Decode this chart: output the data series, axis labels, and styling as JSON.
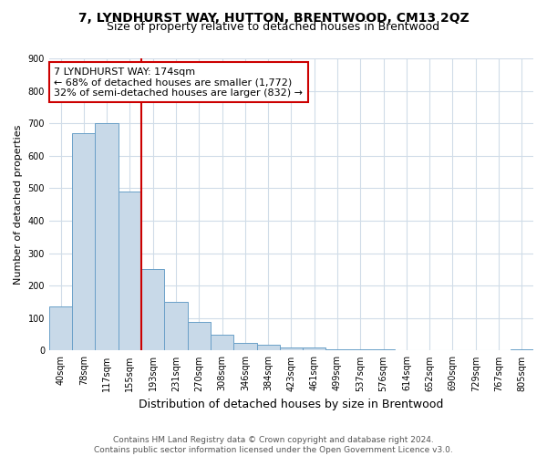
{
  "title": "7, LYNDHURST WAY, HUTTON, BRENTWOOD, CM13 2QZ",
  "subtitle": "Size of property relative to detached houses in Brentwood",
  "xlabel": "Distribution of detached houses by size in Brentwood",
  "ylabel": "Number of detached properties",
  "bar_labels": [
    "40sqm",
    "78sqm",
    "117sqm",
    "155sqm",
    "193sqm",
    "231sqm",
    "270sqm",
    "308sqm",
    "346sqm",
    "384sqm",
    "423sqm",
    "461sqm",
    "499sqm",
    "537sqm",
    "576sqm",
    "614sqm",
    "652sqm",
    "690sqm",
    "729sqm",
    "767sqm",
    "805sqm"
  ],
  "bar_values": [
    137,
    670,
    700,
    490,
    252,
    150,
    88,
    50,
    25,
    18,
    10,
    10,
    5,
    5,
    5,
    2,
    2,
    2,
    0,
    0,
    3
  ],
  "bar_color": "#c8d9e8",
  "bar_edge_color": "#6aa0c8",
  "bar_linewidth": 0.7,
  "annotation_text": "7 LYNDHURST WAY: 174sqm\n← 68% of detached houses are smaller (1,772)\n32% of semi-detached houses are larger (832) →",
  "annotation_box_color": "#ffffff",
  "annotation_box_edge": "#cc0000",
  "ylim": [
    0,
    900
  ],
  "yticks": [
    0,
    100,
    200,
    300,
    400,
    500,
    600,
    700,
    800,
    900
  ],
  "grid_color": "#d0dce8",
  "background_color": "#ffffff",
  "footnote": "Contains HM Land Registry data © Crown copyright and database right 2024.\nContains public sector information licensed under the Open Government Licence v3.0.",
  "title_fontsize": 10,
  "subtitle_fontsize": 9,
  "xlabel_fontsize": 9,
  "ylabel_fontsize": 8,
  "tick_fontsize": 7,
  "annotation_fontsize": 8,
  "footnote_fontsize": 6.5
}
